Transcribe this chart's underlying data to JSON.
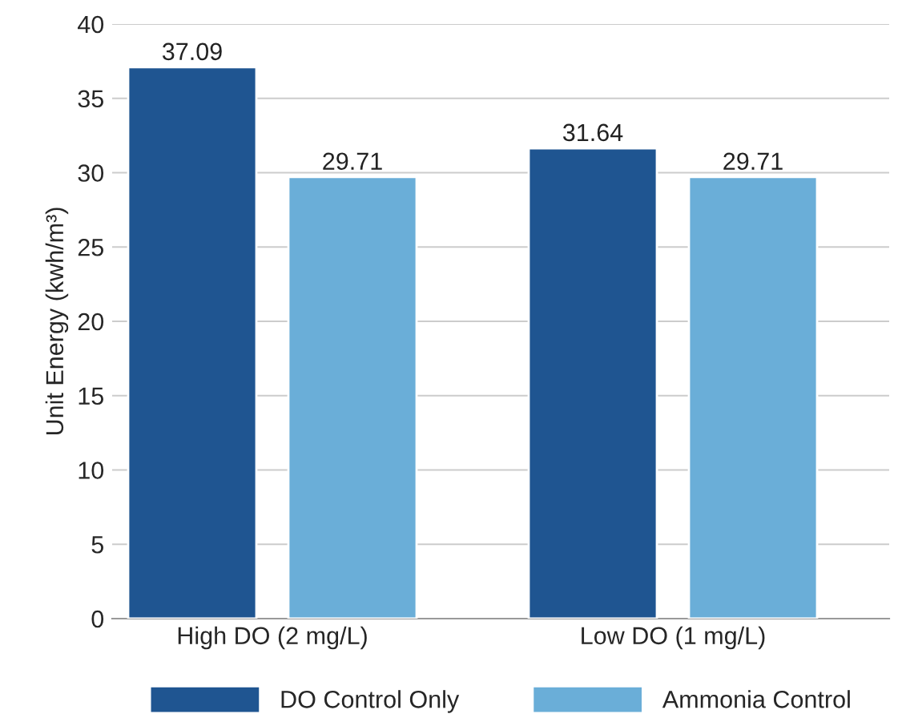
{
  "chart_data": {
    "type": "bar",
    "ylabel": "Unit Energy (kwh/m³)",
    "categories": [
      "High DO (2 mg/L)",
      "Low DO (1 mg/L)"
    ],
    "series": [
      {
        "name": "DO Control Only",
        "color": "#1f5591",
        "values": [
          37.09,
          31.64
        ]
      },
      {
        "name": "Ammonia Control",
        "color": "#6aaed8",
        "values": [
          29.71,
          29.71
        ]
      }
    ],
    "ylim": [
      0,
      40
    ],
    "yticks": [
      0,
      5,
      10,
      15,
      20,
      25,
      30,
      35,
      40
    ],
    "grid": "y",
    "legend": "bottom",
    "data_labels": true
  }
}
